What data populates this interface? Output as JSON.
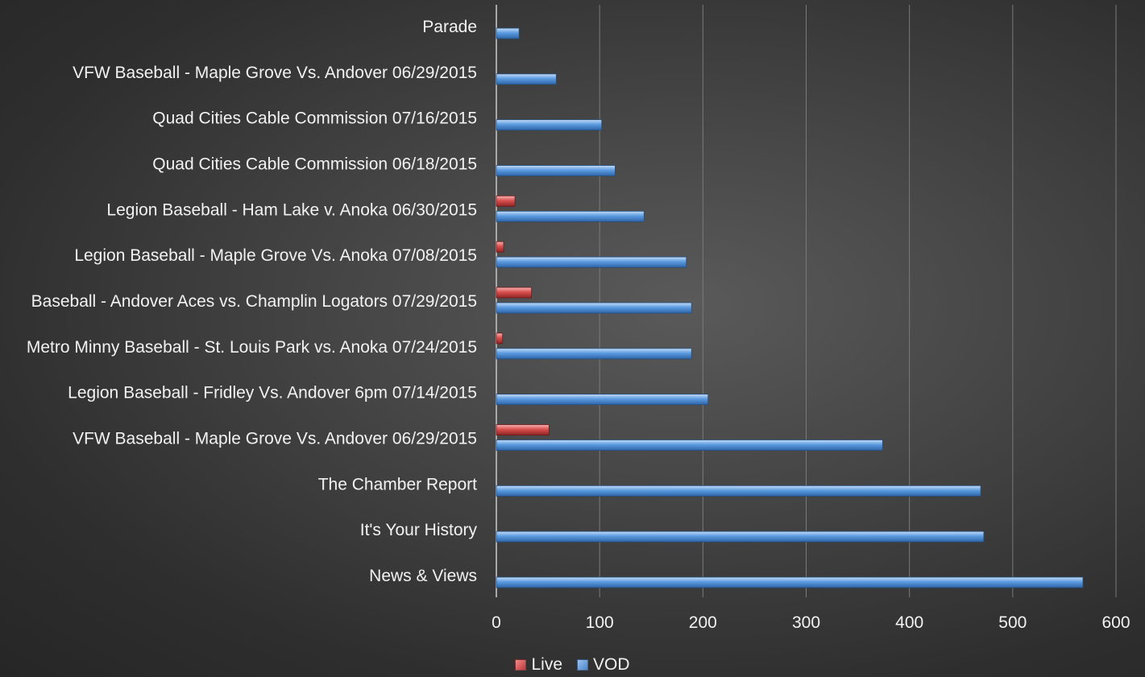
{
  "chart_data": {
    "type": "bar",
    "orientation": "horizontal",
    "categories": [
      "News & Views",
      "It's Your History",
      "The Chamber Report",
      "VFW Baseball - Maple Grove Vs. Andover 06/29/2015",
      "Legion Baseball - Fridley Vs. Andover 6pm 07/14/2015",
      "Metro Minny Baseball - St. Louis Park vs. Anoka 07/24/2015",
      "Baseball - Andover Aces vs. Champlin Logators 07/29/2015",
      "Legion Baseball - Maple Grove Vs. Anoka 07/08/2015",
      "Legion Baseball - Ham Lake v. Anoka 06/30/2015",
      "Quad Cities Cable Commission 06/18/2015",
      "Quad Cities Cable Commission 07/16/2015",
      "VFW Baseball - Maple Grove Vs. Andover 06/29/2015",
      "Parade"
    ],
    "series": [
      {
        "name": "Live",
        "color": "#d9504f",
        "values": [
          0,
          0,
          0,
          51,
          0,
          6,
          34,
          7,
          18,
          0,
          0,
          0,
          0
        ]
      },
      {
        "name": "VOD",
        "color": "#5b9be0",
        "values": [
          568,
          472,
          469,
          374,
          205,
          189,
          189,
          184,
          143,
          115,
          102,
          58,
          22
        ]
      }
    ],
    "xlim": [
      0,
      600
    ],
    "xticks": [
      "0",
      "100",
      "200",
      "300",
      "400",
      "500",
      "600"
    ],
    "grid": "vertical",
    "legend_position": "bottom",
    "title": "",
    "xlabel": "",
    "ylabel": ""
  }
}
